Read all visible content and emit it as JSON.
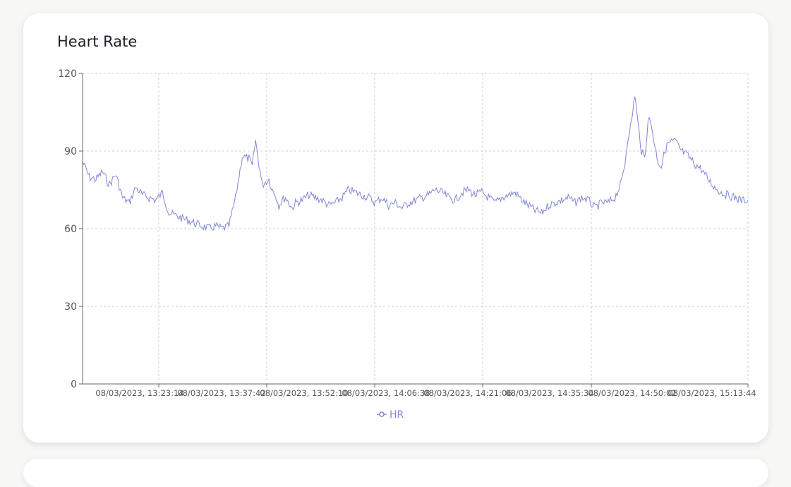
{
  "card": {
    "title": "Heart Rate"
  },
  "chart_data": {
    "type": "line",
    "title": "Heart Rate",
    "xlabel": "",
    "ylabel": "",
    "ylim": [
      0,
      120
    ],
    "y_ticks": [
      0,
      30,
      60,
      90,
      120
    ],
    "x_tick_labels": [
      "08/03/2023, 13:23:14",
      "08/03/2023, 13:37:42",
      "08/03/2023, 13:52:10",
      "08/03/2023, 14:06:38",
      "08/03/2023, 14:21:06",
      "08/03/2023, 14:35:34",
      "08/03/2023, 14:50:02",
      "08/03/2023, 15:13:44"
    ],
    "grid": true,
    "legend_position": "bottom-center",
    "series": [
      {
        "name": "HR",
        "color": "#8086d6",
        "x_fraction": [
          0,
          0.01,
          0.02,
          0.03,
          0.04,
          0.05,
          0.06,
          0.07,
          0.08,
          0.09,
          0.1,
          0.11,
          0.12,
          0.13,
          0.14,
          0.15,
          0.16,
          0.17,
          0.18,
          0.19,
          0.2,
          0.21,
          0.22,
          0.23,
          0.24,
          0.25,
          0.255,
          0.26,
          0.265,
          0.27,
          0.28,
          0.285,
          0.29,
          0.295,
          0.3,
          0.305,
          0.31,
          0.315,
          0.32,
          0.33,
          0.34,
          0.35,
          0.36,
          0.37,
          0.38,
          0.39,
          0.4,
          0.41,
          0.42,
          0.43,
          0.44,
          0.45,
          0.46,
          0.47,
          0.48,
          0.49,
          0.5,
          0.51,
          0.52,
          0.53,
          0.54,
          0.55,
          0.56,
          0.57,
          0.58,
          0.59,
          0.6,
          0.61,
          0.62,
          0.63,
          0.64,
          0.65,
          0.66,
          0.67,
          0.68,
          0.69,
          0.7,
          0.71,
          0.72,
          0.73,
          0.74,
          0.75,
          0.76,
          0.77,
          0.78,
          0.79,
          0.8,
          0.81,
          0.815,
          0.82,
          0.825,
          0.83,
          0.835,
          0.84,
          0.845,
          0.85,
          0.855,
          0.86,
          0.865,
          0.87,
          0.875,
          0.88,
          0.89,
          0.9,
          0.91,
          0.92,
          0.93,
          0.94,
          0.95,
          0.96,
          0.97,
          0.98,
          0.99,
          1.0
        ],
        "values": [
          86,
          80,
          79,
          82,
          77,
          81,
          72,
          70,
          76,
          73,
          72,
          71,
          74,
          66,
          65,
          64,
          63,
          62,
          61,
          60,
          61,
          60,
          61,
          72,
          88,
          87,
          84,
          94,
          85,
          77,
          79,
          75,
          73,
          69,
          71,
          72,
          70,
          68,
          70,
          71,
          73,
          72,
          71,
          69,
          70,
          72,
          75,
          74,
          73,
          72,
          70,
          72,
          69,
          70,
          68,
          70,
          71,
          72,
          73,
          75,
          74,
          72,
          71,
          74,
          75,
          73,
          74,
          72,
          70,
          72,
          73,
          74,
          71,
          69,
          67,
          66,
          69,
          70,
          71,
          72,
          70,
          72,
          71,
          68,
          70,
          70,
          72,
          78,
          85,
          96,
          101,
          112,
          100,
          90,
          87,
          103,
          100,
          92,
          86,
          84,
          90,
          93,
          94,
          90,
          88,
          85,
          83,
          79,
          76,
          74,
          73,
          72,
          71,
          71
        ]
      }
    ]
  }
}
